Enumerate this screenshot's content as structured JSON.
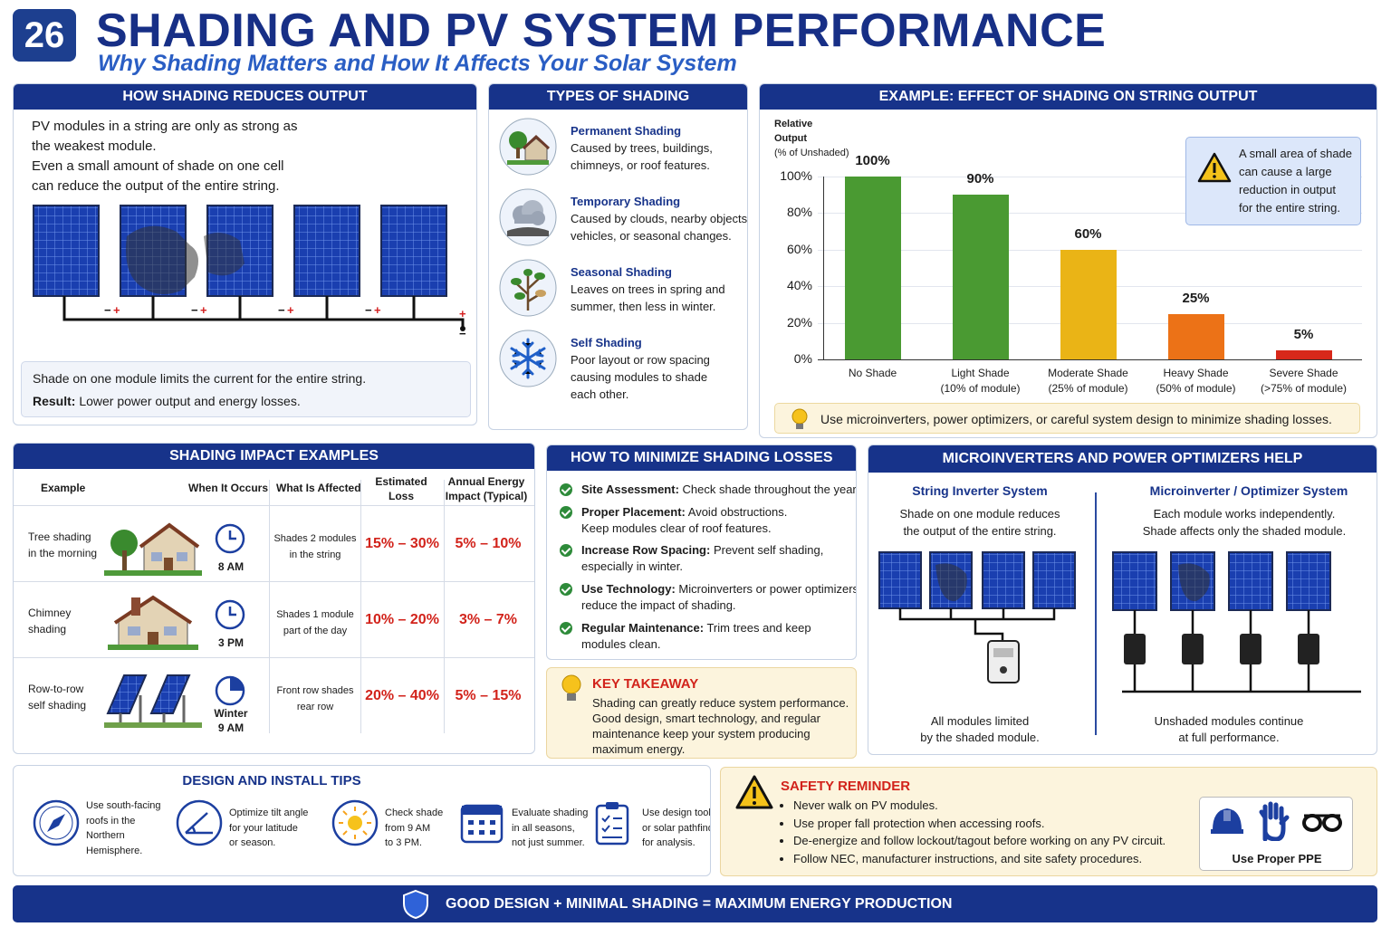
{
  "header": {
    "number": "26",
    "title": "SHADING AND PV SYSTEM PERFORMANCE",
    "subtitle": "Why Shading Matters and How It Affects Your Solar System"
  },
  "how": {
    "title": "HOW SHADING REDUCES OUTPUT",
    "p1": "PV modules in a string are only as strong as",
    "p2": "the weakest module.",
    "p3": "Even a small amount of shade on one cell",
    "p4": "can reduce the output of the entire string.",
    "note1": "Shade on one module limits the current for the entire string.",
    "result_label": "Result:",
    "result_text": " Lower power output and energy losses."
  },
  "types": {
    "title": "TYPES OF SHADING",
    "items": [
      {
        "name": "Permanent Shading",
        "l1": "Caused by trees, buildings,",
        "l2": "chimneys, or roof features.",
        "l3": "",
        "icon": "house-tree-icon"
      },
      {
        "name": "Temporary Shading",
        "l1": "Caused by clouds, nearby objects,",
        "l2": "vehicles, or seasonal changes.",
        "l3": "",
        "icon": "cloud-icon"
      },
      {
        "name": "Seasonal Shading",
        "l1": "Leaves on trees in spring and",
        "l2": "summer, then less in winter.",
        "l3": "",
        "icon": "leaves-icon"
      },
      {
        "name": "Self Shading",
        "l1": "Poor layout or row spacing",
        "l2": "causing modules to shade",
        "l3": "each other.",
        "icon": "snowflake-icon"
      }
    ]
  },
  "example": {
    "title": "EXAMPLE: EFFECT OF SHADING ON STRING OUTPUT",
    "ylabel1": "Relative",
    "ylabel2": "Output",
    "ylabel3": "(% of Unshaded)",
    "warning": [
      "A small area of shade",
      "can cause a large",
      "reduction in output",
      "for the entire string."
    ],
    "tip": "Use microinverters, power optimizers, or careful system design to minimize shading losses."
  },
  "chart_data": {
    "type": "bar",
    "categories": [
      "No Shade",
      "Light Shade",
      "Moderate Shade",
      "Heavy Shade",
      "Severe Shade"
    ],
    "category_sub": [
      "",
      "(10% of module)",
      "(25% of module)",
      "(50% of module)",
      "(>75% of module)"
    ],
    "values": [
      100,
      90,
      60,
      25,
      5
    ],
    "value_labels": [
      "100%",
      "90%",
      "60%",
      "25%",
      "5%"
    ],
    "colors": [
      "#4a9a32",
      "#4a9a32",
      "#eab416",
      "#ec7217",
      "#d8281a"
    ],
    "yticks": [
      "0%",
      "20%",
      "40%",
      "60%",
      "80%",
      "100%"
    ],
    "ylim": [
      0,
      100
    ],
    "ylabel": "Relative Output (% of Unshaded)"
  },
  "impact": {
    "title": "SHADING IMPACT EXAMPLES",
    "headers": {
      "example": "Example",
      "when": "When It Occurs",
      "what": "What Is Affected",
      "loss1": "Estimated",
      "loss2": "Loss",
      "annual1": "Annual Energy",
      "annual2": "Impact (Typical)"
    },
    "rows": [
      {
        "ex1": "Tree shading",
        "ex2": "in the morning",
        "time1": "",
        "time2": "8 AM",
        "what1": "Shades 2 modules",
        "what2": "in the string",
        "loss": "15% – 30%",
        "annual": "5% – 10%"
      },
      {
        "ex1": "Chimney",
        "ex2": "shading",
        "time1": "",
        "time2": "3 PM",
        "what1": "Shades 1 module",
        "what2": "part of the day",
        "loss": "10% – 20%",
        "annual": "3% – 7%"
      },
      {
        "ex1": "Row-to-row",
        "ex2": "self shading",
        "time1": "Winter",
        "time2": "9 AM",
        "what1": "Front row shades",
        "what2": "rear row",
        "loss": "20% – 40%",
        "annual": "5% – 15%"
      }
    ]
  },
  "minimize": {
    "title": "HOW TO MINIMIZE SHADING LOSSES",
    "items": [
      {
        "b": "Site Assessment:",
        "t": " Check shade throughout the year.",
        "t2": ""
      },
      {
        "b": "Proper Placement:",
        "t": " Avoid obstructions.",
        "t2": "Keep modules clear of roof features."
      },
      {
        "b": "Increase Row Spacing:",
        "t": " Prevent self shading,",
        "t2": "especially in winter."
      },
      {
        "b": "Use Technology:",
        "t": " Microinverters or power optimizers",
        "t2": "reduce the impact of shading."
      },
      {
        "b": "Regular Maintenance:",
        "t": " Trim trees and keep",
        "t2": "modules clean."
      }
    ]
  },
  "takeaway": {
    "title": "KEY TAKEAWAY",
    "lines": [
      "Shading can greatly reduce system performance.",
      "Good design, smart technology, and regular",
      "maintenance keep your system producing",
      "maximum energy."
    ]
  },
  "micro": {
    "title": "MICROINVERTERS AND POWER OPTIMIZERS HELP",
    "left_title": "String Inverter System",
    "left_d1": "Shade on one module reduces",
    "left_d2": "the output of the entire string.",
    "left_f1": "All modules limited",
    "left_f2": "by the shaded module.",
    "right_title": "Microinverter / Optimizer System",
    "right_d1": "Each module works independently.",
    "right_d2": "Shade affects only the shaded module.",
    "right_f1": "Unshaded modules continue",
    "right_f2": "at full performance."
  },
  "tips": {
    "title": "DESIGN AND INSTALL TIPS",
    "items": [
      {
        "icon": "compass-icon",
        "lines": [
          "Use south-facing",
          "roofs in the",
          "Northern",
          "Hemisphere."
        ]
      },
      {
        "icon": "angle-icon",
        "lines": [
          "Optimize tilt angle",
          "for your latitude",
          "or season."
        ]
      },
      {
        "icon": "sun-icon",
        "lines": [
          "Check shade",
          "from 9 AM",
          "to 3 PM."
        ]
      },
      {
        "icon": "calendar-icon",
        "lines": [
          "Evaluate shading",
          "in all seasons,",
          "not just summer."
        ]
      },
      {
        "icon": "clipboard-icon",
        "lines": [
          "Use design tools",
          "or solar pathfinder",
          "for analysis."
        ]
      }
    ]
  },
  "safety": {
    "title": "SAFETY REMINDER",
    "items": [
      "Never walk on PV modules.",
      "Use proper fall protection when accessing roofs.",
      "De-energize and follow lockout/tagout before working on any PV circuit.",
      "Follow NEC, manufacturer instructions, and site safety procedures."
    ],
    "ppe": "Use Proper PPE"
  },
  "footer": {
    "text": "GOOD DESIGN + MINIMAL SHADING = MAXIMUM ENERGY PRODUCTION"
  }
}
